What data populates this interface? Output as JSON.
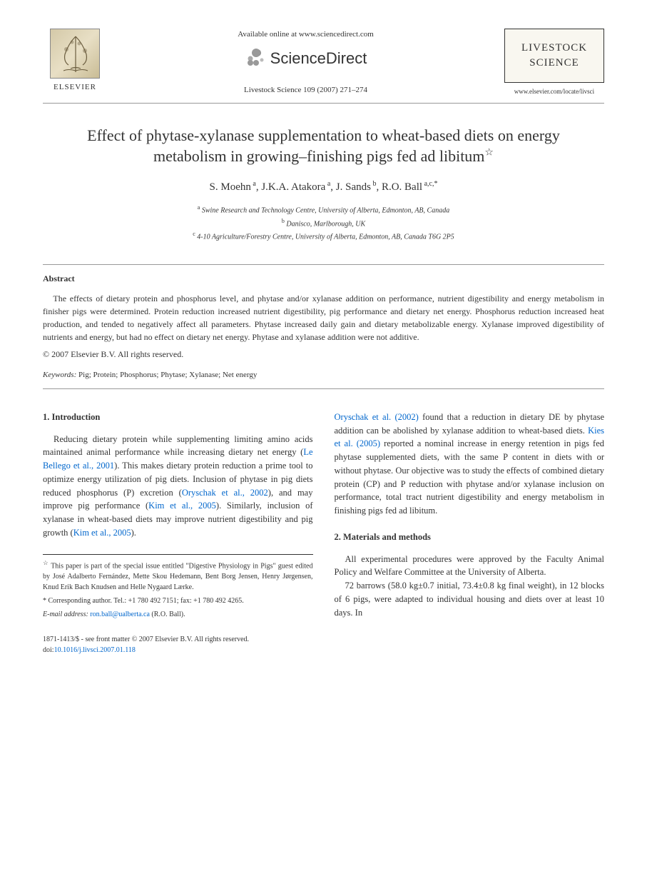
{
  "header": {
    "available_text": "Available online at www.sciencedirect.com",
    "sciencedirect": "ScienceDirect",
    "citation": "Livestock Science 109 (2007) 271–274",
    "elsevier_label": "ELSEVIER",
    "journal_line1": "LIVESTOCK",
    "journal_line2": "SCIENCE",
    "journal_url": "www.elsevier.com/locate/livsci"
  },
  "title": "Effect of phytase-xylanase supplementation to wheat-based diets on energy metabolism in growing–finishing pigs fed ad libitum",
  "star_char": "☆",
  "authors_html": "S. Moehn<sup> a</sup>, J.K.A. Atakora<sup> a</sup>, J. Sands<sup> b</sup>, R.O. Ball<sup> a,c,*</sup>",
  "affiliations": {
    "a": "Swine Research and Technology Centre, University of Alberta, Edmonton, AB, Canada",
    "b": "Danisco, Marlborough, UK",
    "c": "4-10 Agriculture/Forestry Centre, University of Alberta, Edmonton, AB, Canada T6G 2P5"
  },
  "abstract": {
    "heading": "Abstract",
    "text": "The effects of dietary protein and phosphorus level, and phytase and/or xylanase addition on performance, nutrient digestibility and energy metabolism in finisher pigs were determined. Protein reduction increased nutrient digestibility, pig performance and dietary net energy. Phosphorus reduction increased heat production, and tended to negatively affect all parameters. Phytase increased daily gain and dietary metabolizable energy. Xylanase improved digestibility of nutrients and energy, but had no effect on dietary net energy. Phytase and xylanase addition were not additive.",
    "copyright": "© 2007 Elsevier B.V. All rights reserved."
  },
  "keywords": {
    "label": "Keywords:",
    "text": "Pig; Protein; Phosphorus; Phytase; Xylanase; Net energy"
  },
  "sections": {
    "intro_heading": "1. Introduction",
    "intro_p1_a": "Reducing dietary protein while supplementing limiting amino acids maintained animal performance while increasing dietary net energy (",
    "intro_ref1": "Le Bellego et al., 2001",
    "intro_p1_b": "). This makes dietary protein reduction a prime tool to optimize energy utilization of pig diets. Inclusion of phytase in pig diets reduced phosphorus (P) excretion (",
    "intro_ref2": "Oryschak et al., 2002",
    "intro_p1_c": "), and may improve pig performance (",
    "intro_ref3": "Kim et al., 2005",
    "intro_p1_d": "). Similarly, inclusion of xylanase in wheat-based diets may improve nutrient digestibility and pig growth (",
    "intro_ref4": "Kim et al., 2005",
    "intro_p1_e": ").",
    "col2_ref1": "Oryschak et al. (2002)",
    "col2_a": " found that a reduction in dietary DE by phytase addition can be abolished by xylanase addition to wheat-based diets. ",
    "col2_ref2": "Kies et al. (2005)",
    "col2_b": " reported a nominal increase in energy retention in pigs fed phytase supplemented diets, with the same P content in diets with or without phytase. Our objective was to study the effects of combined dietary protein (CP) and P reduction with phytase and/or xylanase inclusion on performance, total tract nutrient digestibility and energy metabolism in finishing pigs fed ad libitum.",
    "methods_heading": "2. Materials and methods",
    "methods_p1": "All experimental procedures were approved by the Faculty Animal Policy and Welfare Committee at the University of Alberta.",
    "methods_p2": "72 barrows (58.0 kg±0.7 initial, 73.4±0.8 kg final weight), in 12 blocks of 6 pigs, were adapted to individual housing and diets over at least 10 days. In"
  },
  "footnotes": {
    "star": "This paper is part of the special issue entitled \"Digestive Physiology in Pigs\" guest edited by José Adalberto Fernández, Mette Skou Hedemann, Bent Borg Jensen, Henry Jørgensen, Knud Erik Bach Knudsen and Helle Nygaard Lærke.",
    "corresponding_label": "* Corresponding author. Tel.: +1 780 492 7151; fax: +1 780 492 4265.",
    "email_label": "E-mail address:",
    "email": "ron.ball@ualberta.ca",
    "email_suffix": "(R.O. Ball)."
  },
  "footer": {
    "line1": "1871-1413/$ - see front matter © 2007 Elsevier B.V. All rights reserved.",
    "doi_label": "doi:",
    "doi": "10.1016/j.livsci.2007.01.118"
  },
  "colors": {
    "link": "#0066cc",
    "border": "#999999",
    "text": "#333333"
  }
}
